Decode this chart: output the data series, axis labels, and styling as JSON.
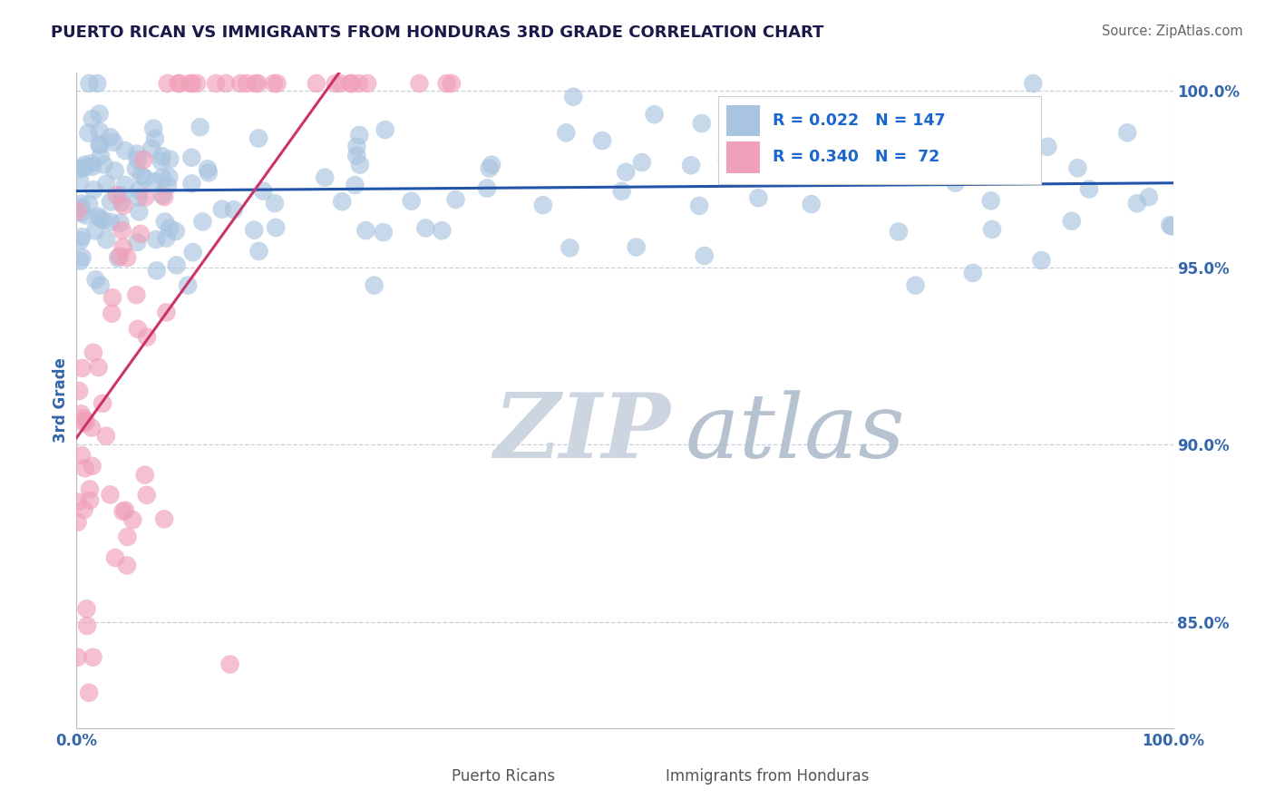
{
  "title": "PUERTO RICAN VS IMMIGRANTS FROM HONDURAS 3RD GRADE CORRELATION CHART",
  "source": "Source: ZipAtlas.com",
  "ylabel": "3rd Grade",
  "xlim": [
    0.0,
    1.0
  ],
  "ylim": [
    0.82,
    1.005
  ],
  "yticks": [
    0.85,
    0.9,
    0.95,
    1.0
  ],
  "ytick_labels": [
    "85.0%",
    "90.0%",
    "95.0%",
    "100.0%"
  ],
  "xticks": [
    0.0,
    1.0
  ],
  "xtick_labels": [
    "0.0%",
    "100.0%"
  ],
  "blue_R": 0.022,
  "blue_N": 147,
  "pink_R": 0.34,
  "pink_N": 72,
  "blue_color": "#a8c4e0",
  "pink_color": "#f0a0b8",
  "blue_line_color": "#2255aa",
  "pink_line_color": "#cc3366",
  "title_color": "#1a1a4a",
  "source_color": "#666666",
  "axis_color": "#3366aa",
  "ylabel_color": "#3366aa",
  "background_color": "#ffffff",
  "watermark_color": "#ccd5e0",
  "legend_R_color": "#1a66cc",
  "grid_color": "#c8d0dc",
  "legend_box_color": "#f0f4f8"
}
